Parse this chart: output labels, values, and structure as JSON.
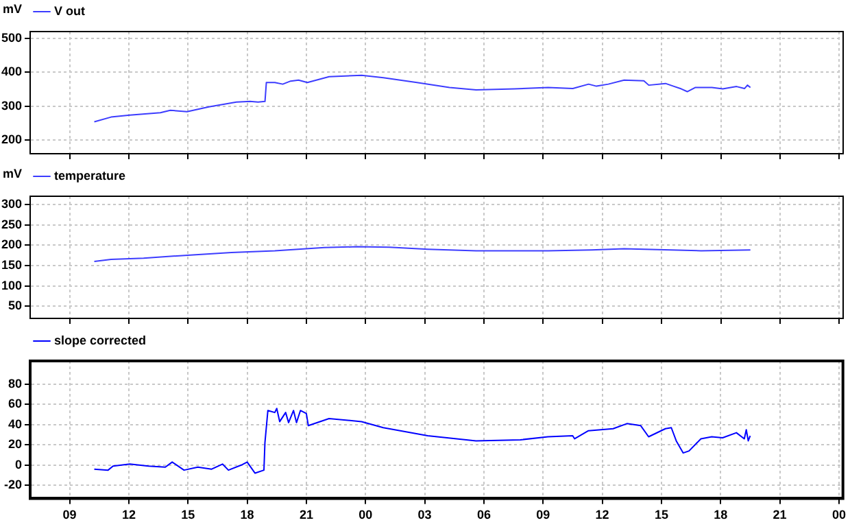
{
  "chart_data": [
    {
      "type": "line",
      "ylabel": "mV",
      "legend": "top left",
      "grid": true,
      "tick_labels": "y",
      "marker": "none",
      "line_style": "solid",
      "xlim": [
        7,
        48.2
      ],
      "xticks": [
        {
          "value": 9,
          "label": null
        },
        {
          "value": 12,
          "label": null
        },
        {
          "value": 15,
          "label": null
        },
        {
          "value": 18,
          "label": null
        },
        {
          "value": 21,
          "label": null
        },
        {
          "value": 24,
          "label": null
        },
        {
          "value": 27,
          "label": null
        },
        {
          "value": 30,
          "label": null
        },
        {
          "value": 33,
          "label": null
        },
        {
          "value": 36,
          "label": null
        },
        {
          "value": 39,
          "label": null
        },
        {
          "value": 42,
          "label": null
        },
        {
          "value": 45,
          "label": null
        },
        {
          "value": 48,
          "label": null
        }
      ],
      "ylim": [
        160,
        520
      ],
      "yticks": [
        200,
        300,
        400,
        500
      ],
      "series": [
        {
          "name": "V out",
          "color": "#3c3cff",
          "x": [
            10.25,
            11.1,
            12.05,
            13.6,
            14.1,
            14.95,
            16.05,
            17.45,
            18.15,
            18.55,
            18.9,
            18.97,
            19.4,
            19.8,
            20.2,
            20.6,
            21.05,
            22.15,
            23.8,
            24.9,
            26.6,
            28.25,
            29.6,
            31.55,
            33.25,
            34.5,
            35.3,
            35.7,
            36.3,
            37.1,
            38.1,
            38.35,
            39.2,
            39.6,
            40.0,
            40.3,
            40.7,
            41.55,
            42.1,
            42.8,
            43.2,
            43.35,
            43.5
          ],
          "values": [
            254,
            268,
            274,
            281,
            288,
            284,
            298,
            312,
            314,
            312,
            314,
            370,
            370,
            365,
            374,
            377,
            370,
            387,
            391,
            384,
            370,
            355,
            348,
            351,
            355,
            352,
            365,
            359,
            365,
            377,
            375,
            362,
            367,
            359,
            351,
            343,
            355,
            355,
            351,
            358,
            352,
            362,
            355
          ]
        }
      ]
    },
    {
      "type": "line",
      "ylabel": "mV",
      "legend": "top left",
      "grid": true,
      "tick_labels": "y",
      "marker": "none",
      "line_style": "solid",
      "xlim": [
        7,
        48.2
      ],
      "xticks": [
        {
          "value": 9,
          "label": null
        },
        {
          "value": 12,
          "label": null
        },
        {
          "value": 15,
          "label": null
        },
        {
          "value": 18,
          "label": null
        },
        {
          "value": 21,
          "label": null
        },
        {
          "value": 24,
          "label": null
        },
        {
          "value": 27,
          "label": null
        },
        {
          "value": 30,
          "label": null
        },
        {
          "value": 33,
          "label": null
        },
        {
          "value": 36,
          "label": null
        },
        {
          "value": 39,
          "label": null
        },
        {
          "value": 42,
          "label": null
        },
        {
          "value": 45,
          "label": null
        },
        {
          "value": 48,
          "label": null
        }
      ],
      "ylim": [
        20,
        320
      ],
      "yticks": [
        50,
        100,
        150,
        200,
        250,
        300
      ],
      "series": [
        {
          "name": "temperature",
          "color": "#3c3cff",
          "x": [
            10.25,
            11.1,
            12.75,
            15.25,
            17.2,
            19.4,
            21.9,
            23.55,
            25.2,
            27.15,
            29.6,
            33.25,
            35.45,
            37.1,
            38.8,
            41.0,
            43.5
          ],
          "values": [
            160,
            165,
            168,
            176,
            182,
            186,
            194,
            196,
            195,
            190,
            186,
            186,
            188,
            191,
            189,
            186,
            188
          ]
        }
      ]
    },
    {
      "type": "line",
      "legend": "top left",
      "grid": true,
      "marker": "none",
      "line_style": "solid",
      "xlim": [
        7,
        48.2
      ],
      "xticks": [
        {
          "value": 9,
          "label": "09"
        },
        {
          "value": 12,
          "label": "12"
        },
        {
          "value": 15,
          "label": "15"
        },
        {
          "value": 18,
          "label": "18"
        },
        {
          "value": 21,
          "label": "21"
        },
        {
          "value": 24,
          "label": "00"
        },
        {
          "value": 27,
          "label": "03"
        },
        {
          "value": 30,
          "label": "06"
        },
        {
          "value": 33,
          "label": "09"
        },
        {
          "value": 36,
          "label": "12"
        },
        {
          "value": 39,
          "label": "15"
        },
        {
          "value": 42,
          "label": "18"
        },
        {
          "value": 45,
          "label": "21"
        },
        {
          "value": 48,
          "label": "00"
        }
      ],
      "ylim": [
        -33,
        103
      ],
      "yticks": [
        -20,
        0,
        20,
        40,
        60,
        80
      ],
      "series": [
        {
          "name": "slope corrected",
          "color": "#0000ff",
          "x": [
            10.25,
            10.95,
            11.2,
            12.05,
            13.0,
            13.85,
            14.2,
            14.8,
            15.5,
            16.2,
            16.75,
            17.05,
            17.7,
            18.0,
            18.4,
            18.85,
            18.9,
            19.05,
            19.4,
            19.5,
            19.65,
            19.95,
            20.1,
            20.35,
            20.5,
            20.7,
            21.0,
            21.1,
            22.15,
            23.8,
            24.9,
            27.15,
            29.6,
            31.85,
            33.25,
            34.5,
            34.6,
            35.3,
            36.55,
            37.25,
            37.95,
            38.35,
            39.2,
            39.5,
            39.75,
            40.1,
            40.4,
            41.0,
            41.55,
            42.1,
            42.8,
            43.2,
            43.3,
            43.4,
            43.5
          ],
          "values": [
            -4,
            -5,
            -1,
            1,
            -1,
            -2,
            3,
            -5,
            -2,
            -4,
            1,
            -5,
            0,
            3,
            -8,
            -5,
            22,
            54,
            52,
            56,
            43,
            52,
            42,
            54,
            42,
            54,
            51,
            39,
            46,
            43,
            37,
            29,
            24,
            25,
            28,
            29,
            26,
            34,
            36,
            41,
            39,
            28,
            36,
            37,
            24,
            12,
            14,
            26,
            28,
            27,
            32,
            26,
            35,
            24,
            29
          ]
        }
      ]
    }
  ]
}
